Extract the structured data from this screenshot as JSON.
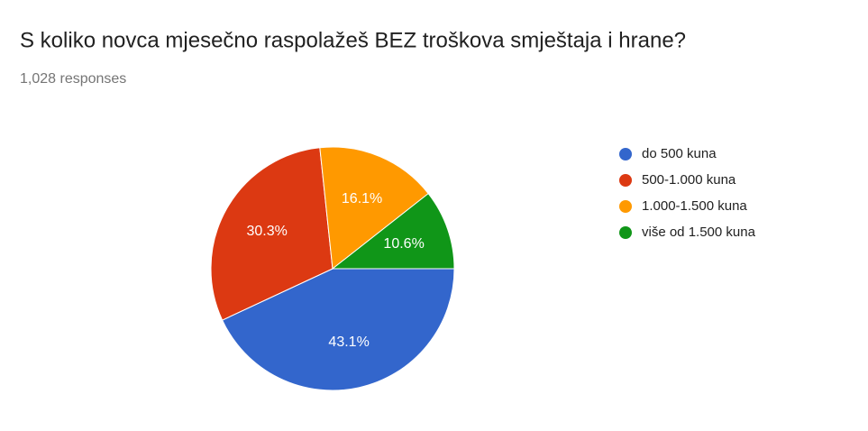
{
  "chart_data": {
    "type": "pie",
    "title": "S koliko novca mjesečno raspolažeš BEZ troškova smještaja i hrane?",
    "subtitle": "1,028 responses",
    "categories": [
      "do 500 kuna",
      "500-1.000 kuna",
      "1.000-1.500 kuna",
      "više od 1.500 kuna"
    ],
    "values": [
      43.1,
      30.3,
      16.1,
      10.6
    ],
    "value_labels": [
      "43.1%",
      "30.3%",
      "16.1%",
      "10.6%"
    ],
    "colors": [
      "#3366cc",
      "#dc3912",
      "#ff9900",
      "#109618"
    ],
    "legend": "right"
  }
}
